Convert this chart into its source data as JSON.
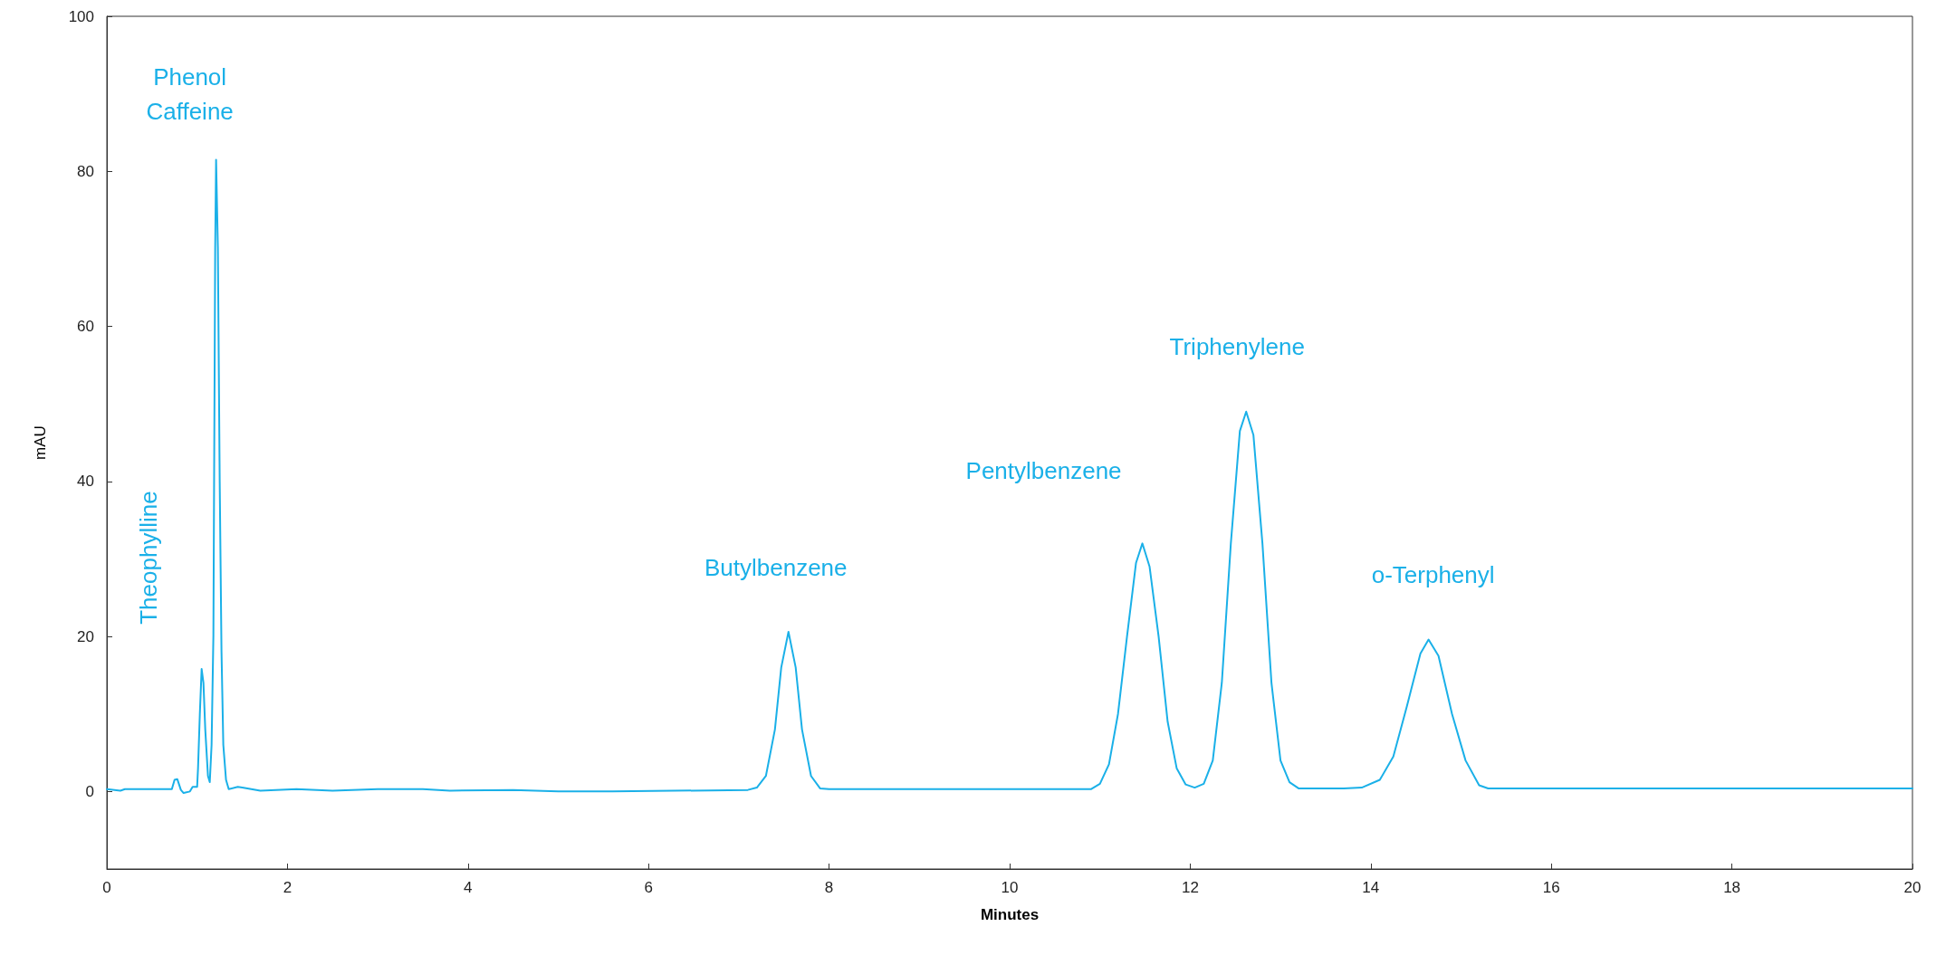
{
  "chart_data": {
    "type": "line",
    "xlabel": "Minutes",
    "ylabel": "mAU",
    "xlim": [
      0,
      20
    ],
    "xticks": [
      0,
      2,
      4,
      6,
      8,
      10,
      12,
      14,
      16,
      18,
      20
    ],
    "ylim": [
      -10,
      100
    ],
    "yticks": [
      0,
      20,
      40,
      60,
      80,
      100
    ],
    "grid": false,
    "marker": "none",
    "line_style": "solid",
    "annotations": [
      {
        "text": "Phenol\nCaffeine",
        "x": 1.21,
        "y": 81.5
      },
      {
        "text": "Theophylline",
        "x": 1.05,
        "y": 15.8
      },
      {
        "text": "Butylbenzene",
        "x": 7.55,
        "y": 20.6
      },
      {
        "text": "Pentylbenzene",
        "x": 11.47,
        "y": 32
      },
      {
        "text": "Triphenylene",
        "x": 12.62,
        "y": 49
      },
      {
        "text": "o-Terphenyl",
        "x": 14.64,
        "y": 19.6
      }
    ],
    "series": [
      {
        "color": "#1ab0e8",
        "x": [
          0,
          0.15,
          0.2,
          0.72,
          0.75,
          0.78,
          0.82,
          0.85,
          0.92,
          0.95,
          1.0,
          1.01,
          1.03,
          1.05,
          1.07,
          1.09,
          1.12,
          1.14,
          1.16,
          1.18,
          1.2,
          1.21,
          1.23,
          1.25,
          1.27,
          1.29,
          1.32,
          1.35,
          1.45,
          1.5,
          1.6,
          1.7,
          2.1,
          2.5,
          3.0,
          3.5,
          3.8,
          4.5,
          5.0,
          5.6,
          7.1,
          7.2,
          7.3,
          7.4,
          7.47,
          7.55,
          7.63,
          7.7,
          7.8,
          7.9,
          8.0,
          10.9,
          11.0,
          11.1,
          11.2,
          11.3,
          11.4,
          11.47,
          11.55,
          11.65,
          11.75,
          11.85,
          11.95,
          12.05,
          12.15,
          12.25,
          12.35,
          12.45,
          12.55,
          12.62,
          12.7,
          12.8,
          12.9,
          13.0,
          13.1,
          13.2,
          13.7,
          13.9,
          14.1,
          14.25,
          14.4,
          14.55,
          14.64,
          14.75,
          14.9,
          15.05,
          15.2,
          15.3,
          20
        ],
        "values": [
          0.3,
          0.1,
          0.3,
          0.3,
          1.5,
          1.6,
          0.2,
          -0.2,
          0,
          0.6,
          0.6,
          3,
          10,
          15.8,
          14,
          8,
          2,
          1.2,
          6,
          20,
          70,
          81.5,
          70,
          40,
          18,
          6,
          1.5,
          0.3,
          0.6,
          0.5,
          0.3,
          0.1,
          0.3,
          0.1,
          0.3,
          0.3,
          0.1,
          0.2,
          0,
          0,
          0.2,
          0.5,
          2,
          8,
          16,
          20.6,
          16,
          8,
          2,
          0.4,
          0.3,
          0.3,
          1,
          3.5,
          10,
          20,
          29.5,
          32,
          29,
          20,
          9,
          3,
          0.9,
          0.5,
          1,
          4,
          14,
          32,
          46.5,
          49,
          46,
          32,
          14,
          4,
          1.2,
          0.4,
          0.4,
          0.5,
          1.5,
          4.5,
          11,
          17.8,
          19.6,
          17.5,
          10,
          4,
          0.8,
          0.4,
          0.4
        ]
      }
    ]
  }
}
